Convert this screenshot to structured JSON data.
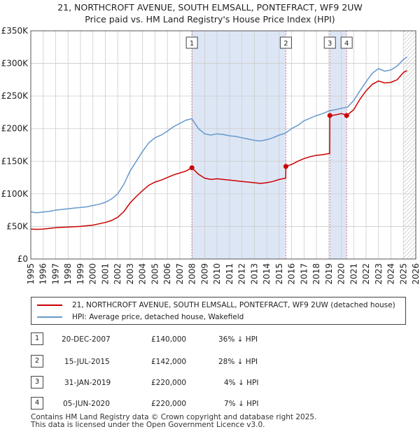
{
  "title_line1": "21, NORTHCROFT AVENUE, SOUTH ELMSALL, PONTEFRACT, WF9 2UW",
  "title_line2": "Price paid vs. HM Land Registry's House Price Index (HPI)",
  "colors": {
    "property": "#cc0000",
    "hpi": "#6699cc",
    "shade": "#dde6f5",
    "grid": "#cccccc",
    "vline": "#dd7788"
  },
  "legend": {
    "property_label": "21, NORTHCROFT AVENUE, SOUTH ELMSALL, PONTEFRACT, WF9 2UW (detached house)",
    "hpi_label": "HPI: Average price, detached house, Wakefield"
  },
  "transactions": [
    {
      "num": "1",
      "date": "20-DEC-2007",
      "price": "£140,000",
      "hpi_diff": "36% ↓ HPI"
    },
    {
      "num": "2",
      "date": "15-JUL-2015",
      "price": "£142,000",
      "hpi_diff": "28% ↓ HPI"
    },
    {
      "num": "3",
      "date": "31-JAN-2019",
      "price": "£220,000",
      "hpi_diff": "4% ↓ HPI"
    },
    {
      "num": "4",
      "date": "05-JUN-2020",
      "price": "£220,000",
      "hpi_diff": "7% ↓ HPI"
    }
  ],
  "footer_line1": "Contains HM Land Registry data © Crown copyright and database right 2025.",
  "footer_line2": "This data is licensed under the Open Government Licence v3.0.",
  "chart_data": {
    "type": "line",
    "title": "21, NORTHCROFT AVENUE, SOUTH ELMSALL, PONTEFRACT, WF9 2UW",
    "xlabel": "",
    "ylabel": "",
    "xlim": [
      1995,
      2026
    ],
    "ylim": [
      0,
      350000
    ],
    "x_ticks": [
      1995,
      1996,
      1997,
      1998,
      1999,
      2000,
      2001,
      2002,
      2003,
      2004,
      2005,
      2006,
      2007,
      2008,
      2009,
      2010,
      2011,
      2012,
      2013,
      2014,
      2015,
      2016,
      2017,
      2018,
      2019,
      2020,
      2021,
      2022,
      2023,
      2024,
      2025,
      2026
    ],
    "y_ticks": [
      {
        "value": 0,
        "label": "£0"
      },
      {
        "value": 50000,
        "label": "£50K"
      },
      {
        "value": 100000,
        "label": "£100K"
      },
      {
        "value": 150000,
        "label": "£150K"
      },
      {
        "value": 200000,
        "label": "£200K"
      },
      {
        "value": 250000,
        "label": "£250K"
      },
      {
        "value": 300000,
        "label": "£300K"
      },
      {
        "value": 350000,
        "label": "£350K"
      }
    ],
    "grid": true,
    "legend_position": "below",
    "shaded_ranges": [
      [
        2007.97,
        2015.54
      ],
      [
        2019.08,
        2020.43
      ]
    ],
    "hatch_from": 2025.0,
    "markers": [
      {
        "label": "1",
        "x": 2007.97,
        "y": 140000
      },
      {
        "label": "2",
        "x": 2015.54,
        "y": 142000
      },
      {
        "label": "3",
        "x": 2019.08,
        "y": 220000
      },
      {
        "label": "4",
        "x": 2020.43,
        "y": 220000
      }
    ],
    "series": [
      {
        "name": "HPI: Average price, detached house, Wakefield",
        "x": [
          1995,
          1995.5,
          1996,
          1996.5,
          1997,
          1997.5,
          1998,
          1998.5,
          1999,
          1999.5,
          2000,
          2000.5,
          2001,
          2001.5,
          2002,
          2002.5,
          2003,
          2003.5,
          2004,
          2004.5,
          2005,
          2005.5,
          2006,
          2006.5,
          2007,
          2007.5,
          2007.97,
          2008.5,
          2009,
          2009.5,
          2010,
          2010.5,
          2011,
          2011.5,
          2012,
          2012.5,
          2013,
          2013.5,
          2014,
          2014.5,
          2015,
          2015.5,
          2016,
          2016.5,
          2017,
          2017.5,
          2018,
          2018.5,
          2019,
          2019.5,
          2020,
          2020.5,
          2021,
          2021.5,
          2022,
          2022.5,
          2023,
          2023.5,
          2024,
          2024.5,
          2025,
          2025.3
        ],
        "values": [
          72000,
          71000,
          72000,
          73000,
          75000,
          76000,
          77000,
          78000,
          79000,
          80000,
          82000,
          84000,
          87000,
          92000,
          100000,
          115000,
          135000,
          150000,
          165000,
          178000,
          186000,
          190000,
          196000,
          203000,
          208000,
          213000,
          215000,
          200000,
          192000,
          190000,
          192000,
          191000,
          189000,
          188000,
          186000,
          184000,
          182000,
          181000,
          183000,
          186000,
          190000,
          193000,
          200000,
          205000,
          212000,
          216000,
          220000,
          223000,
          227000,
          229000,
          231000,
          233000,
          243000,
          258000,
          272000,
          285000,
          292000,
          288000,
          290000,
          296000,
          306000,
          310000
        ]
      },
      {
        "name": "21, NORTHCROFT AVENUE, SOUTH ELMSALL, PONTEFRACT, WF9 2UW (detached house)",
        "x": [
          1995,
          1995.5,
          1996,
          1996.5,
          1997,
          1997.5,
          1998,
          1998.5,
          1999,
          1999.5,
          2000,
          2000.5,
          2001,
          2001.5,
          2002,
          2002.5,
          2003,
          2003.5,
          2004,
          2004.5,
          2005,
          2005.5,
          2006,
          2006.5,
          2007,
          2007.5,
          2007.97,
          2008.5,
          2009,
          2009.5,
          2010,
          2010.5,
          2011,
          2011.5,
          2012,
          2012.5,
          2013,
          2013.5,
          2014,
          2014.5,
          2015,
          2015.53,
          2015.54,
          2016,
          2016.5,
          2017,
          2017.5,
          2018,
          2018.5,
          2019.07,
          2019.08,
          2019.5,
          2020,
          2020.42,
          2020.43,
          2021,
          2021.5,
          2022,
          2022.5,
          2023,
          2023.5,
          2024,
          2024.5,
          2025,
          2025.3
        ],
        "values": [
          46000,
          45500,
          46000,
          47000,
          48000,
          48500,
          49000,
          49500,
          50000,
          51000,
          52000,
          54000,
          56000,
          59000,
          64000,
          73000,
          86000,
          96000,
          105000,
          113000,
          118000,
          121000,
          125000,
          129000,
          132000,
          135000,
          140000,
          130000,
          124000,
          122000,
          123000,
          122000,
          121000,
          120000,
          119000,
          118000,
          117000,
          116000,
          117000,
          119000,
          122000,
          124000,
          142000,
          145000,
          150000,
          154000,
          157000,
          159000,
          160000,
          162000,
          220000,
          221000,
          223000,
          221000,
          220000,
          229000,
          245000,
          258000,
          268000,
          273000,
          270000,
          271000,
          275000,
          286000,
          289000
        ]
      }
    ]
  }
}
